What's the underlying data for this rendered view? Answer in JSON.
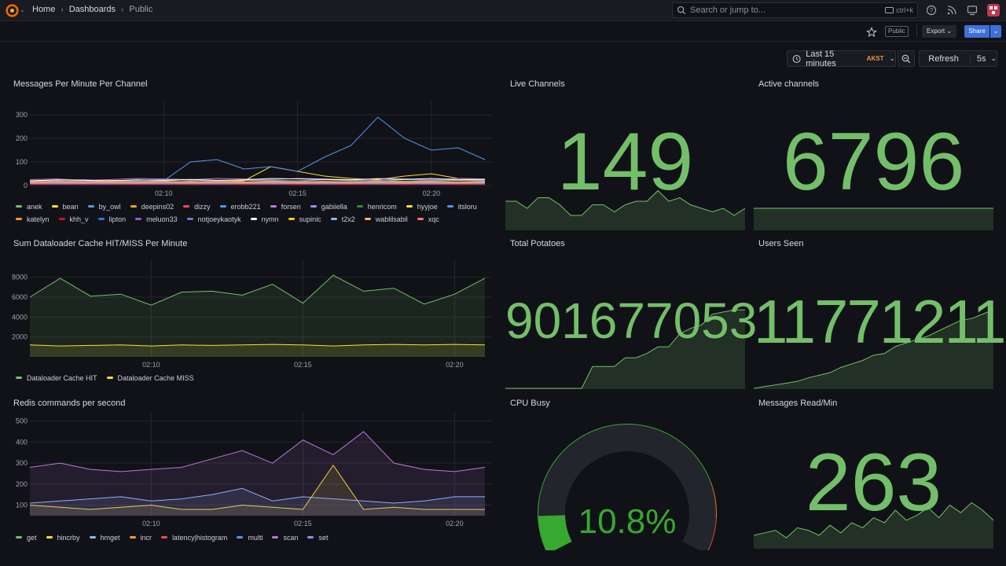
{
  "breadcrumb": {
    "home": "Home",
    "dashboards": "Dashboards",
    "current": "Public"
  },
  "search": {
    "placeholder": "Search or jump to...",
    "shortcut": "ctrl+k"
  },
  "toolbar": {
    "public_badge": "Public",
    "export_label": "Export",
    "share_label": "Share"
  },
  "timepicker": {
    "range": "Last 15 minutes",
    "timezone": "AKST",
    "refresh_label": "Refresh",
    "interval": "5s"
  },
  "colors": {
    "stat_green": "#73bf69",
    "background": "#111217",
    "panel": "#181b1f",
    "accent_blue": "#3d71d9"
  },
  "panels": {
    "messages": {
      "title": "Messages Per Minute Per Channel",
      "chart_data": {
        "type": "line",
        "x": [
          "02:05",
          "02:06",
          "02:07",
          "02:08",
          "02:09",
          "02:10",
          "02:11",
          "02:12",
          "02:13",
          "02:14",
          "02:15",
          "02:16",
          "02:17",
          "02:18",
          "02:19",
          "02:20",
          "02:21",
          "02:22"
        ],
        "x_ticks": [
          "02:10",
          "02:15",
          "02:20"
        ],
        "y_ticks": [
          "0",
          "100",
          "200",
          "300"
        ],
        "ylim": [
          0,
          330
        ],
        "series": [
          {
            "name": "anek",
            "color": "#73bf69",
            "values": [
              18,
              20,
              15,
              22,
              18,
              20,
              25,
              18,
              22,
              20,
              18,
              25,
              20,
              22,
              18,
              20,
              22,
              20
            ]
          },
          {
            "name": "bean",
            "color": "#fade2a",
            "values": [
              12,
              15,
              10,
              14,
              12,
              15,
              18,
              14,
              20,
              80,
              60,
              40,
              30,
              25,
              40,
              50,
              30,
              25
            ]
          },
          {
            "name": "by_owl",
            "color": "#5794f2",
            "values": [
              15,
              18,
              20,
              15,
              18,
              20,
              100,
              110,
              70,
              80,
              60,
              120,
              170,
              290,
              200,
              150,
              160,
              110
            ]
          },
          {
            "name": "deepins02",
            "color": "#ff9830",
            "values": [
              8,
              10,
              12,
              8,
              10,
              12,
              10,
              15,
              12,
              10,
              14,
              12,
              15,
              18,
              14,
              12,
              15,
              14
            ]
          },
          {
            "name": "dizzy",
            "color": "#f2495c",
            "values": [
              5,
              8,
              6,
              5,
              8,
              6,
              8,
              5,
              8,
              6,
              5,
              8,
              6,
              5,
              8,
              6,
              8,
              6
            ]
          },
          {
            "name": "erobb221",
            "color": "#5794f2",
            "values": [
              20,
              22,
              25,
              20,
              22,
              25,
              22,
              20,
              25,
              22,
              20,
              25,
              22,
              20,
              25,
              22,
              25,
              22
            ]
          },
          {
            "name": "forsen",
            "color": "#b877d9",
            "values": [
              25,
              28,
              22,
              25,
              30,
              28,
              25,
              30,
              28,
              25,
              30,
              28,
              25,
              30,
              28,
              25,
              30,
              28
            ]
          },
          {
            "name": "gabiiella",
            "color": "#8f8fff",
            "values": [
              10,
              12,
              10,
              12,
              10,
              12,
              10,
              12,
              10,
              12,
              10,
              12,
              10,
              12,
              10,
              12,
              10,
              12
            ]
          },
          {
            "name": "henricom",
            "color": "#37872d",
            "values": [
              12,
              14,
              12,
              14,
              12,
              14,
              12,
              14,
              12,
              14,
              12,
              14,
              12,
              14,
              12,
              14,
              12,
              14
            ]
          },
          {
            "name": "hyyjoe",
            "color": "#fade2a",
            "values": [
              8,
              10,
              8,
              10,
              8,
              10,
              8,
              10,
              8,
              10,
              8,
              10,
              8,
              10,
              8,
              10,
              8,
              10
            ]
          },
          {
            "name": "itsloru",
            "color": "#5794f2",
            "values": [
              6,
              8,
              6,
              8,
              6,
              8,
              6,
              8,
              6,
              8,
              6,
              8,
              6,
              8,
              6,
              8,
              6,
              8
            ]
          },
          {
            "name": "katelyn",
            "color": "#ff9830",
            "values": [
              15,
              16,
              15,
              16,
              15,
              16,
              15,
              16,
              15,
              16,
              15,
              16,
              15,
              16,
              15,
              16,
              15,
              16
            ]
          },
          {
            "name": "khh_v",
            "color": "#c4162a",
            "values": [
              4,
              5,
              4,
              5,
              4,
              5,
              4,
              5,
              4,
              5,
              4,
              5,
              4,
              5,
              4,
              5,
              4,
              5
            ]
          },
          {
            "name": "lipton",
            "color": "#3274d9",
            "values": [
              9,
              10,
              9,
              10,
              9,
              10,
              9,
              10,
              9,
              10,
              9,
              10,
              9,
              10,
              9,
              10,
              9,
              10
            ]
          },
          {
            "name": "meluon33",
            "color": "#a352cc",
            "values": [
              7,
              6,
              7,
              6,
              7,
              6,
              7,
              6,
              7,
              6,
              7,
              6,
              7,
              6,
              7,
              6,
              7,
              6
            ]
          },
          {
            "name": "notjoeykaotyk",
            "color": "#6e7ad1",
            "values": [
              11,
              12,
              11,
              12,
              11,
              12,
              11,
              12,
              11,
              12,
              11,
              12,
              11,
              12,
              11,
              12,
              11,
              12
            ]
          },
          {
            "name": "nymn",
            "color": "#ffffff",
            "values": [
              20,
              24,
              22,
              20,
              24,
              22,
              26,
              22,
              24,
              30,
              28,
              26,
              24,
              28,
              26,
              30,
              24,
              26
            ]
          },
          {
            "name": "supinic",
            "color": "#f2cc0c",
            "values": [
              16,
              18,
              16,
              18,
              16,
              18,
              16,
              18,
              16,
              18,
              16,
              18,
              16,
              18,
              16,
              18,
              16,
              18
            ]
          },
          {
            "name": "t2x2",
            "color": "#8ab8ff",
            "values": [
              13,
              12,
              13,
              12,
              13,
              12,
              13,
              12,
              13,
              12,
              13,
              12,
              13,
              12,
              13,
              12,
              13,
              12
            ]
          },
          {
            "name": "wablilsabil",
            "color": "#ffb357",
            "values": [
              10,
              11,
              10,
              11,
              10,
              11,
              10,
              11,
              10,
              11,
              10,
              11,
              10,
              11,
              10,
              11,
              10,
              11
            ]
          },
          {
            "name": "xqc",
            "color": "#ff7383",
            "values": [
              14,
              15,
              14,
              15,
              14,
              15,
              14,
              15,
              14,
              15,
              14,
              15,
              14,
              15,
              14,
              15,
              14,
              15
            ]
          }
        ]
      }
    },
    "dataloader": {
      "title": "Sum Dataloader Cache HIT/MISS Per Minute",
      "chart_data": {
        "type": "line",
        "x": [
          "02:06",
          "02:07",
          "02:08",
          "02:09",
          "02:10",
          "02:11",
          "02:12",
          "02:13",
          "02:14",
          "02:15",
          "02:16",
          "02:17",
          "02:18",
          "02:19",
          "02:20",
          "02:21"
        ],
        "x_ticks": [
          "02:10",
          "02:15",
          "02:20"
        ],
        "y_ticks": [
          "2000",
          "4000",
          "6000",
          "8000"
        ],
        "ylim": [
          0,
          9000
        ],
        "series": [
          {
            "name": "Dataloader Cache HIT",
            "color": "#73bf69",
            "values": [
              6000,
              7900,
              6100,
              6300,
              5200,
              6500,
              6600,
              6200,
              7300,
              5400,
              8200,
              6600,
              6900,
              5300,
              6300,
              7900
            ]
          },
          {
            "name": "Dataloader Cache MISS",
            "color": "#fade2a",
            "values": [
              1200,
              1100,
              1150,
              1200,
              1100,
              1200,
              1150,
              1200,
              1250,
              1200,
              1100,
              1200,
              1250,
              1200,
              1250,
              1200
            ]
          }
        ]
      }
    },
    "redis": {
      "title": "Redis commands per second",
      "chart_data": {
        "type": "area",
        "x": [
          "02:06",
          "02:07",
          "02:08",
          "02:09",
          "02:10",
          "02:11",
          "02:12",
          "02:13",
          "02:14",
          "02:15",
          "02:16",
          "02:17",
          "02:18",
          "02:19",
          "02:20",
          "02:21"
        ],
        "x_ticks": [
          "02:10",
          "02:15",
          "02:20"
        ],
        "y_ticks": [
          "100",
          "200",
          "300",
          "400",
          "500"
        ],
        "ylim": [
          50,
          510
        ],
        "series": [
          {
            "name": "get",
            "color": "#73bf69",
            "values": [
              0,
              0,
              0,
              0,
              0,
              0,
              0,
              0,
              0,
              0,
              0,
              0,
              0,
              0,
              0,
              0
            ]
          },
          {
            "name": "hincrby",
            "color": "#fade2a",
            "values": [
              100,
              90,
              80,
              90,
              100,
              80,
              80,
              100,
              90,
              80,
              290,
              80,
              90,
              80,
              80,
              80
            ]
          },
          {
            "name": "hmget",
            "color": "#8ab8ff",
            "values": [
              110,
              120,
              130,
              140,
              120,
              130,
              150,
              180,
              120,
              140,
              130,
              120,
              110,
              120,
              140,
              140
            ]
          },
          {
            "name": "incr",
            "color": "#ff9830",
            "values": [
              0,
              0,
              0,
              0,
              0,
              0,
              0,
              0,
              0,
              0,
              0,
              0,
              0,
              0,
              0,
              0
            ]
          },
          {
            "name": "latency|histogram",
            "color": "#f2495c",
            "values": [
              0,
              0,
              0,
              0,
              0,
              0,
              0,
              0,
              0,
              0,
              0,
              0,
              0,
              0,
              0,
              0
            ]
          },
          {
            "name": "multi",
            "color": "#5794f2",
            "values": [
              0,
              0,
              0,
              0,
              0,
              0,
              0,
              0,
              0,
              0,
              0,
              0,
              0,
              0,
              0,
              0
            ]
          },
          {
            "name": "scan",
            "color": "#b877d9",
            "values": [
              280,
              300,
              270,
              260,
              270,
              280,
              320,
              360,
              300,
              410,
              340,
              450,
              300,
              270,
              260,
              280
            ]
          },
          {
            "name": "set",
            "color": "#8f8fff",
            "values": [
              0,
              0,
              0,
              0,
              0,
              0,
              0,
              0,
              0,
              0,
              0,
              0,
              0,
              0,
              0,
              0
            ]
          }
        ]
      }
    },
    "live_channels": {
      "title": "Live Channels",
      "value": "149",
      "spark": [
        40,
        40,
        30,
        45,
        45,
        35,
        20,
        20,
        35,
        35,
        25,
        35,
        40,
        40,
        55,
        40,
        45,
        35,
        30,
        25,
        30,
        20,
        30
      ]
    },
    "active_channels": {
      "title": "Active channels",
      "value": "6796",
      "spark": [
        30,
        30,
        30,
        30,
        30,
        30,
        30,
        30,
        30,
        30,
        30,
        30,
        30,
        30,
        30,
        30
      ]
    },
    "total_potatoes": {
      "title": "Total Potatoes",
      "value": "901677053",
      "spark": [
        0,
        0,
        0,
        0,
        0,
        0,
        0,
        0,
        20,
        20,
        20,
        28,
        28,
        32,
        38,
        38,
        50,
        55,
        58,
        68,
        70,
        72,
        72
      ]
    },
    "users_seen": {
      "title": "Users Seen",
      "value": "11771211",
      "spark": [
        0,
        2,
        4,
        6,
        8,
        12,
        15,
        18,
        24,
        28,
        32,
        38,
        40,
        48,
        52,
        56,
        60,
        66,
        72,
        78,
        80,
        85,
        90
      ]
    },
    "cpu_busy": {
      "title": "CPU Busy",
      "value": "10.8%",
      "gauge_fraction": 0.108
    },
    "messages_read": {
      "title": "Messages Read/Min",
      "value": "263",
      "spark": [
        10,
        12,
        14,
        8,
        16,
        14,
        10,
        18,
        12,
        20,
        16,
        24,
        20,
        30,
        22,
        26,
        32,
        24,
        34,
        28,
        36,
        30,
        22
      ]
    }
  }
}
